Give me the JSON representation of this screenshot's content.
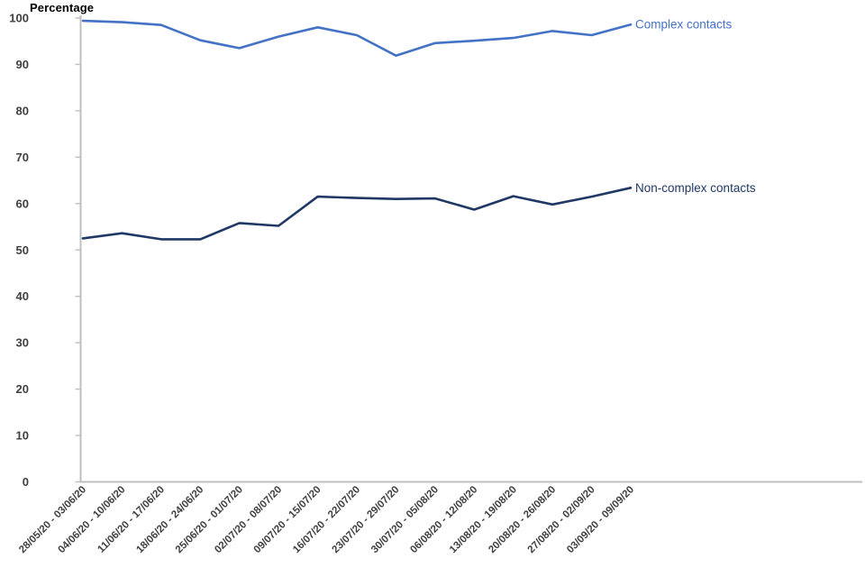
{
  "page": {
    "background": "#ffffff"
  },
  "chart_data": {
    "type": "line",
    "title": "Percentage",
    "xlabel": "",
    "ylabel": "Percentage",
    "ylim": [
      0,
      100
    ],
    "yticks": [
      0,
      10,
      20,
      30,
      40,
      50,
      60,
      70,
      80,
      90,
      100
    ],
    "grid": false,
    "legend_position": "line-end-labels",
    "x_label_rotation_deg": -45,
    "axis_color": "#BFBFBF",
    "tick_label_color": "#404040",
    "categories": [
      "28/05/20 - 03/06/20",
      "04/06/20 - 10/06/20",
      "11/06/20 - 17/06/20",
      "18/06/20 - 24/06/20",
      "25/06/20 - 01/07/20",
      "02/07/20 - 08/07/20",
      "09/07/20 - 15/07/20",
      "16/07/20 - 22/07/20",
      "23/07/20 - 29/07/20",
      "30/07/20 - 05/08/20",
      "06/08/20 - 12/08/20",
      "13/08/20 - 19/08/20",
      "20/08/20 - 26/08/20",
      "27/08/20 - 02/09/20",
      "03/09/20 - 09/09/20"
    ],
    "series": [
      {
        "name": "Complex contacts",
        "color": "#4472C4",
        "values": [
          99.4,
          99.1,
          98.5,
          95.2,
          93.5,
          96.0,
          98.0,
          96.3,
          91.9,
          94.6,
          95.1,
          95.7,
          97.2,
          96.3,
          98.6
        ]
      },
      {
        "name": "Non-complex contacts",
        "color": "#1F3864",
        "values": [
          52.5,
          53.6,
          52.3,
          52.3,
          55.8,
          55.2,
          61.5,
          61.2,
          61.0,
          61.1,
          58.7,
          61.6,
          59.8,
          61.5,
          63.4
        ]
      }
    ]
  }
}
